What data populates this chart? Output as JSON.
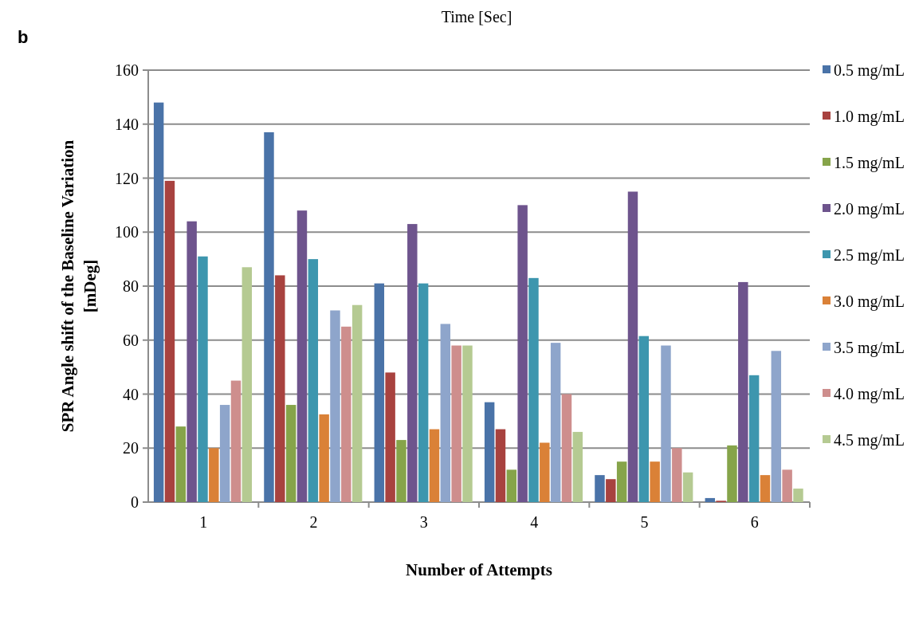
{
  "chart_data": {
    "type": "bar",
    "xlabel": "Number of Attempts",
    "ylabel": "SPR Angle shift of the Baseline Variation [mDeg]",
    "annotations": [
      "Time [Sec]",
      "b"
    ],
    "categories": [
      "1",
      "2",
      "3",
      "4",
      "5",
      "6"
    ],
    "series": [
      {
        "name": "0.5 mg/mL",
        "color": "#4a73a8",
        "values": [
          148,
          137,
          81,
          37,
          10,
          1.5
        ]
      },
      {
        "name": "1.0 mg/mL",
        "color": "#a8423f",
        "values": [
          119,
          84,
          48,
          27,
          8.5,
          0.5
        ]
      },
      {
        "name": "1.5 mg/mL",
        "color": "#86a44a",
        "values": [
          28,
          36,
          23,
          12,
          15,
          21
        ]
      },
      {
        "name": "2.0 mg/mL",
        "color": "#6e548d",
        "values": [
          104,
          108,
          103,
          110,
          115,
          81.5
        ]
      },
      {
        "name": "2.5 mg/mL",
        "color": "#3d96ae",
        "values": [
          91,
          90,
          81,
          83,
          61.5,
          47
        ]
      },
      {
        "name": "3.0 mg/mL",
        "color": "#da8137",
        "values": [
          20,
          32.5,
          27,
          22,
          15,
          10
        ]
      },
      {
        "name": "3.5 mg/mL",
        "color": "#8ea5cb",
        "values": [
          36,
          71,
          66,
          59,
          58,
          56
        ]
      },
      {
        "name": "4.0 mg/mL",
        "color": "#ce8e8d",
        "values": [
          45,
          65,
          58,
          40,
          20,
          12
        ]
      },
      {
        "name": "4.5 mg/mL",
        "color": "#b5ca92",
        "values": [
          87,
          73,
          58,
          26,
          11,
          5
        ]
      }
    ],
    "ylim": [
      0,
      160
    ],
    "yticks": [
      0,
      20,
      40,
      60,
      80,
      100,
      120,
      140,
      160
    ],
    "grid": "y",
    "legend": "right"
  }
}
